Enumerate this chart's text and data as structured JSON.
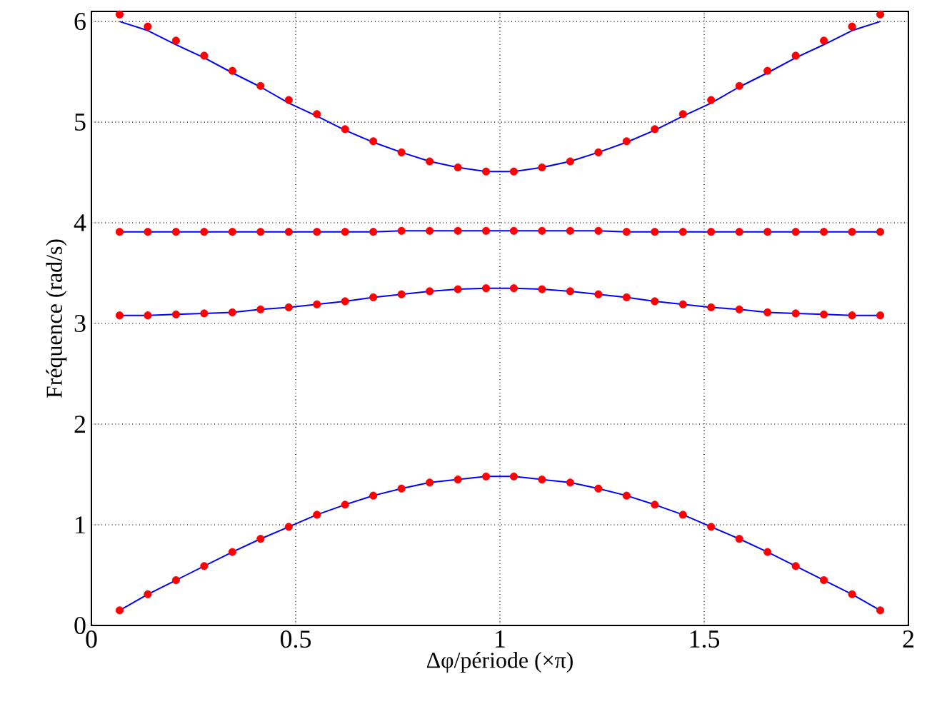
{
  "chart_data": {
    "type": "line",
    "xlabel": "Δφ/période (×π)",
    "ylabel": "Fréquence (rad/s)",
    "x": [
      0.069,
      0.138,
      0.207,
      0.276,
      0.345,
      0.414,
      0.483,
      0.552,
      0.621,
      0.69,
      0.759,
      0.828,
      0.897,
      0.966,
      1.034,
      1.103,
      1.172,
      1.241,
      1.31,
      1.379,
      1.448,
      1.517,
      1.586,
      1.655,
      1.724,
      1.793,
      1.862,
      1.931
    ],
    "xlim": [
      0,
      2
    ],
    "ylim": [
      0,
      6.1
    ],
    "xticks": [
      0,
      0.5,
      1,
      1.5,
      2
    ],
    "yticks": [
      0,
      1,
      2,
      3,
      4,
      5,
      6
    ],
    "grid": true,
    "series": [
      {
        "color": "#0000ff",
        "marker": "none",
        "line_style": "solid",
        "values": [
          0.15,
          0.31,
          0.45,
          0.59,
          0.73,
          0.86,
          0.98,
          1.1,
          1.2,
          1.29,
          1.36,
          1.42,
          1.45,
          1.48,
          1.48,
          1.45,
          1.42,
          1.36,
          1.29,
          1.2,
          1.1,
          0.98,
          0.86,
          0.73,
          0.59,
          0.45,
          0.31,
          0.15
        ]
      },
      {
        "color": "#0000ff",
        "marker": "none",
        "line_style": "solid",
        "values": [
          3.08,
          3.08,
          3.09,
          3.1,
          3.11,
          3.14,
          3.16,
          3.19,
          3.22,
          3.26,
          3.29,
          3.32,
          3.34,
          3.35,
          3.35,
          3.34,
          3.32,
          3.29,
          3.26,
          3.22,
          3.19,
          3.16,
          3.14,
          3.11,
          3.1,
          3.09,
          3.08,
          3.08
        ]
      },
      {
        "color": "#0000ff",
        "marker": "none",
        "line_style": "solid",
        "values": [
          3.91,
          3.91,
          3.91,
          3.91,
          3.91,
          3.91,
          3.91,
          3.91,
          3.91,
          3.91,
          3.92,
          3.92,
          3.92,
          3.92,
          3.92,
          3.92,
          3.92,
          3.92,
          3.91,
          3.91,
          3.91,
          3.91,
          3.91,
          3.91,
          3.91,
          3.91,
          3.91,
          3.91
        ]
      },
      {
        "color": "#0000ff",
        "marker": "none",
        "line_style": "solid",
        "values": [
          6.0,
          5.91,
          5.77,
          5.64,
          5.49,
          5.35,
          5.19,
          5.06,
          4.92,
          4.8,
          4.7,
          4.61,
          4.55,
          4.51,
          4.51,
          4.55,
          4.61,
          4.7,
          4.8,
          4.92,
          5.06,
          5.19,
          5.35,
          5.49,
          5.64,
          5.77,
          5.91,
          6.0
        ]
      },
      {
        "type": "scatter",
        "color": "#ff0000",
        "marker": "circle",
        "values": [
          0.15,
          0.31,
          0.45,
          0.59,
          0.73,
          0.86,
          0.98,
          1.1,
          1.2,
          1.29,
          1.36,
          1.42,
          1.45,
          1.48,
          1.48,
          1.45,
          1.42,
          1.36,
          1.29,
          1.2,
          1.1,
          0.98,
          0.86,
          0.73,
          0.59,
          0.45,
          0.31,
          0.15
        ]
      },
      {
        "type": "scatter",
        "color": "#ff0000",
        "marker": "circle",
        "values": [
          3.08,
          3.08,
          3.09,
          3.1,
          3.11,
          3.14,
          3.16,
          3.19,
          3.22,
          3.26,
          3.29,
          3.32,
          3.34,
          3.35,
          3.35,
          3.34,
          3.32,
          3.29,
          3.26,
          3.22,
          3.19,
          3.16,
          3.14,
          3.11,
          3.1,
          3.09,
          3.08,
          3.08
        ]
      },
      {
        "type": "scatter",
        "color": "#ff0000",
        "marker": "circle",
        "values": [
          3.91,
          3.91,
          3.91,
          3.91,
          3.91,
          3.91,
          3.91,
          3.91,
          3.91,
          3.91,
          3.92,
          3.92,
          3.92,
          3.92,
          3.92,
          3.92,
          3.92,
          3.92,
          3.91,
          3.91,
          3.91,
          3.91,
          3.91,
          3.91,
          3.91,
          3.91,
          3.91,
          3.91
        ]
      },
      {
        "type": "scatter",
        "color": "#ff0000",
        "marker": "circle",
        "values": [
          6.07,
          5.95,
          5.81,
          5.66,
          5.51,
          5.36,
          5.22,
          5.08,
          4.93,
          4.81,
          4.7,
          4.61,
          4.55,
          4.51,
          4.51,
          4.55,
          4.61,
          4.7,
          4.81,
          4.93,
          5.08,
          5.22,
          5.36,
          5.51,
          5.66,
          5.81,
          5.95,
          6.07
        ]
      }
    ]
  }
}
